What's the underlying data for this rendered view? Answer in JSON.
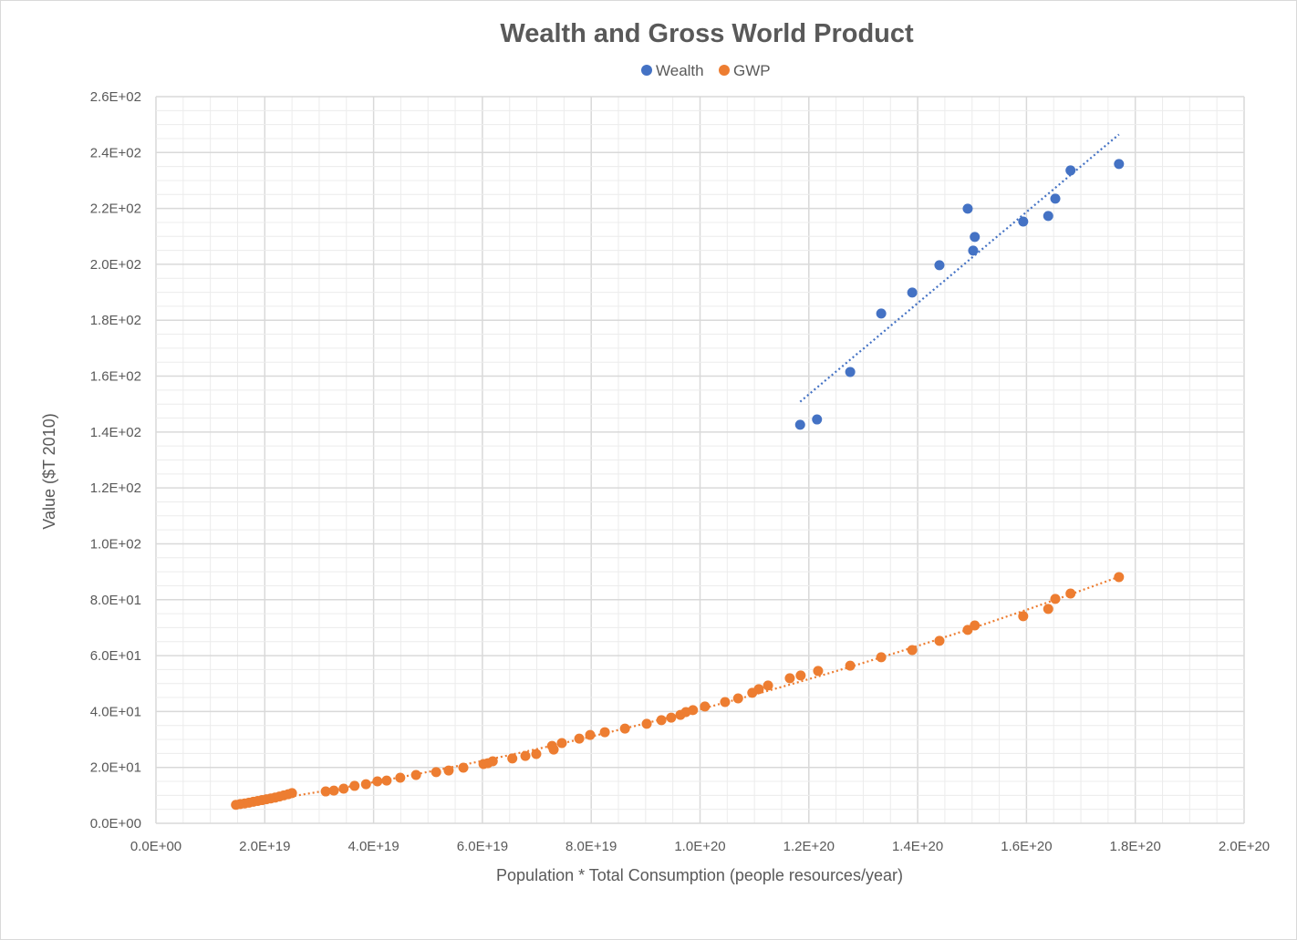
{
  "chart_data": {
    "type": "scatter",
    "title": "Wealth and Gross World Product",
    "xlabel": "Population * Total Consumption (people  resources/year)",
    "ylabel": "Value ($T 2010)",
    "xlim": [
      0,
      2e+20
    ],
    "ylim": [
      0,
      260
    ],
    "x_ticks": [
      0,
      2e+19,
      4e+19,
      6e+19,
      8e+19,
      1e+20,
      1.2e+20,
      1.4e+20,
      1.6e+20,
      1.8e+20,
      2e+20
    ],
    "x_tick_labels": [
      "0.0E+00",
      "2.0E+19",
      "4.0E+19",
      "6.0E+19",
      "8.0E+19",
      "1.0E+20",
      "1.2E+20",
      "1.4E+20",
      "1.6E+20",
      "1.8E+20",
      "2.0E+20"
    ],
    "y_ticks": [
      0,
      20,
      40,
      60,
      80,
      100,
      120,
      140,
      160,
      180,
      200,
      220,
      240,
      260
    ],
    "y_tick_labels": [
      "0.0E+00",
      "2.0E+01",
      "4.0E+01",
      "6.0E+01",
      "8.0E+01",
      "1.0E+02",
      "1.2E+02",
      "1.4E+02",
      "1.6E+02",
      "1.8E+02",
      "2.0E+02",
      "2.2E+02",
      "2.4E+02",
      "2.6E+02"
    ],
    "grid": true,
    "legend_position": "top",
    "series": [
      {
        "name": "Wealth",
        "color": "#4472c4",
        "trendline": "linear",
        "x": [
          1.184e+20,
          1.215e+20,
          1.276e+20,
          1.333e+20,
          1.39e+20,
          1.44e+20,
          1.492e+20,
          1.505e+20,
          1.502e+20,
          1.594e+20,
          1.64e+20,
          1.653e+20,
          1.681e+20,
          1.77e+20
        ],
        "y": [
          142.6,
          144.5,
          161.5,
          182.4,
          189.9,
          199.7,
          219.9,
          209.8,
          204.9,
          215.3,
          217.3,
          223.5,
          233.6,
          235.9
        ]
      },
      {
        "name": "GWP",
        "color": "#ed7d31",
        "trendline": "polynomial",
        "x": [
          1.47e+19,
          1.55e+19,
          1.63e+19,
          1.71e+19,
          1.79e+19,
          1.87e+19,
          1.95e+19,
          2.03e+19,
          2.11e+19,
          2.19e+19,
          2.27e+19,
          2.35e+19,
          2.43e+19,
          2.5e+19,
          3.12e+19,
          3.27e+19,
          3.45e+19,
          3.65e+19,
          3.86e+19,
          4.07e+19,
          4.24e+19,
          4.49e+19,
          4.78e+19,
          5.15e+19,
          5.38e+19,
          5.65e+19,
          6.02e+19,
          6.1e+19,
          6.19e+19,
          6.55e+19,
          6.79e+19,
          6.99e+19,
          7.28e+19,
          7.31e+19,
          7.46e+19,
          7.78e+19,
          7.98e+19,
          8.25e+19,
          8.62e+19,
          9.02e+19,
          9.29e+19,
          9.47e+19,
          9.64e+19,
          9.74e+19,
          9.87e+19,
          1.009e+20,
          1.046e+20,
          1.07e+20,
          1.096e+20,
          1.108e+20,
          1.125e+20,
          1.165e+20,
          1.185e+20,
          1.217e+20,
          1.276e+20,
          1.333e+20,
          1.39e+20,
          1.44e+20,
          1.492e+20,
          1.505e+20,
          1.594e+20,
          1.64e+20,
          1.653e+20,
          1.681e+20,
          1.77e+20
        ],
        "y": [
          6.6,
          6.9,
          7.1,
          7.4,
          7.7,
          8.0,
          8.3,
          8.6,
          8.9,
          9.2,
          9.6,
          10.0,
          10.4,
          10.8,
          11.4,
          11.7,
          12.4,
          13.4,
          14.0,
          15.0,
          15.3,
          16.3,
          17.3,
          18.3,
          18.9,
          19.9,
          21.2,
          21.5,
          22.2,
          23.2,
          24.1,
          24.8,
          27.7,
          26.4,
          28.7,
          30.3,
          31.6,
          32.6,
          33.9,
          35.6,
          36.9,
          37.8,
          38.8,
          39.8,
          40.5,
          41.8,
          43.4,
          44.7,
          46.7,
          48.0,
          49.3,
          51.9,
          52.9,
          54.5,
          56.4,
          59.4,
          62.0,
          65.3,
          69.2,
          70.8,
          74.1,
          76.7,
          80.3,
          82.2,
          88.1
        ]
      }
    ]
  }
}
